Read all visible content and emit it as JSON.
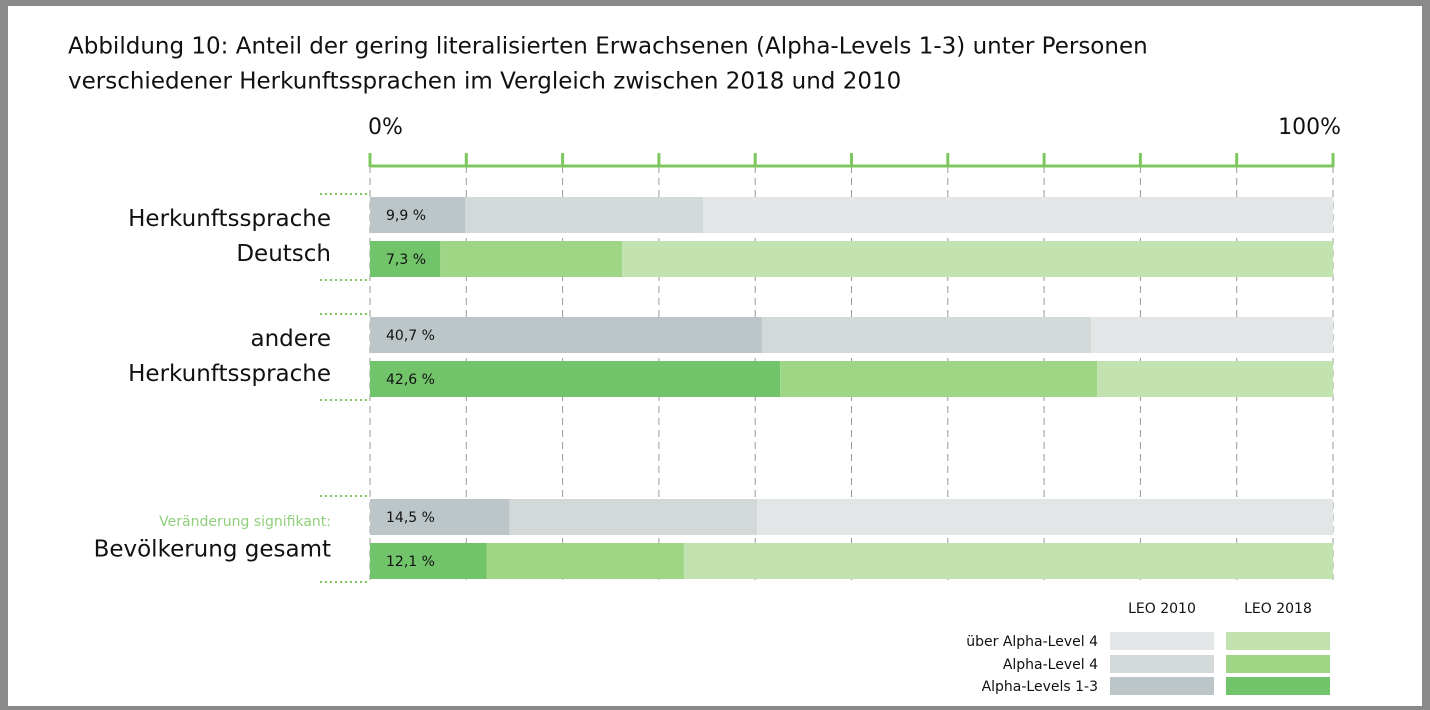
{
  "chart_data": {
    "type": "stacked-barh",
    "title": [
      "Abbildung 10: Anteil der gering literalisierten Erwachsenen (Alpha-Levels 1-3) unter Personen",
      "verschiedener Herkunftssprachen im Vergleich zwischen 2018 und 2010"
    ],
    "categories": [
      [
        "Herkunftssprache",
        "Deutsch"
      ],
      [
        "andere",
        "Herkunftssprache"
      ],
      [
        "Bevölkerung gesamt"
      ]
    ],
    "annotation": {
      "category": 2,
      "text": "Veränderung signifikant:",
      "color": "#8fd07a"
    },
    "levels": [
      "Alpha-Levels 1-3",
      "Alpha-Level 4",
      "über Alpha-Level 4"
    ],
    "years": [
      {
        "name": "LEO 2010",
        "colors": [
          "#bcc6c8",
          "#d3d9d9",
          "#e3e6e6"
        ],
        "values": [
          [
            9.9,
            40.7,
            14.5
          ],
          [
            24.7,
            34.2,
            25.7
          ],
          [
            65.4,
            25.1,
            59.8
          ]
        ],
        "value_labels": [
          "9,9 %",
          "40,7 %",
          "14,5 %"
        ]
      },
      {
        "name": "LEO 2018",
        "colors": [
          "#72c46a",
          "#9ed685",
          "#c2e3b0"
        ],
        "values": [
          [
            7.3,
            42.6,
            12.1
          ],
          [
            18.9,
            32.9,
            20.5
          ],
          [
            73.8,
            24.5,
            67.4
          ]
        ],
        "value_labels": [
          "7,3 %",
          "42,6 %",
          "12,1 %"
        ]
      }
    ],
    "xlim": [
      0,
      100
    ],
    "xticks": [
      {
        "value": 0,
        "label": "0%"
      },
      {
        "value": 100,
        "label": "100%"
      }
    ],
    "xgrid": [
      10,
      20,
      30,
      40,
      50,
      60,
      70,
      80,
      90
    ],
    "axis_color": "#7cc85f"
  }
}
